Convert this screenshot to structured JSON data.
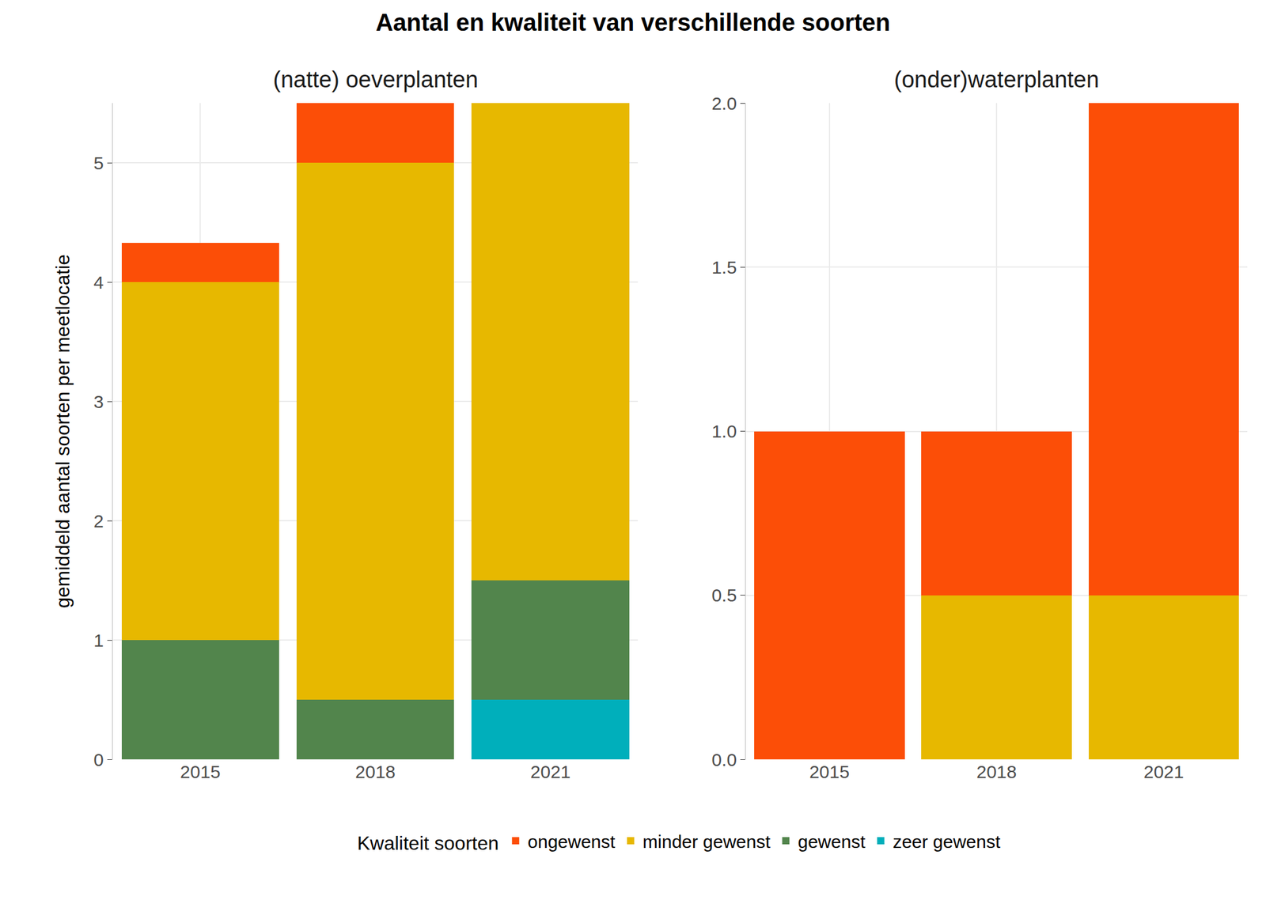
{
  "title": "Aantal en kwaliteit van verschillende soorten",
  "y_label": "gemiddeld aantal soorten per meetlocatie",
  "legend_title": "Kwaliteit soorten",
  "legend": "bottom",
  "chart_data": [
    {
      "type": "bar",
      "title": "(natte) oeverplanten",
      "stacked": true,
      "grid": true,
      "categories": [
        "2015",
        "2018",
        "2021"
      ],
      "series": [
        {
          "name": "ongewenst",
          "color": "#FC4E07",
          "values": [
            0.33,
            0.5,
            0
          ]
        },
        {
          "name": "minder gewenst",
          "color": "#E7B800",
          "values": [
            3,
            4.5,
            4
          ]
        },
        {
          "name": "gewenst",
          "color": "#52854C",
          "values": [
            1,
            0.5,
            1
          ]
        },
        {
          "name": "zeer gewenst",
          "color": "#00AFBB",
          "values": [
            0,
            0,
            0.5
          ]
        }
      ],
      "ylim": [
        0,
        5.5
      ],
      "yticks": [
        0,
        1,
        2,
        3,
        4,
        5
      ]
    },
    {
      "type": "bar",
      "title": "(onder)waterplanten",
      "stacked": true,
      "grid": true,
      "categories": [
        "2015",
        "2018",
        "2021"
      ],
      "series": [
        {
          "name": "ongewenst",
          "color": "#FC4E07",
          "values": [
            1,
            0.5,
            1.5
          ]
        },
        {
          "name": "minder gewenst",
          "color": "#E7B800",
          "values": [
            0,
            0.5,
            0.5
          ]
        },
        {
          "name": "gewenst",
          "color": "#52854C",
          "values": [
            0,
            0,
            0
          ]
        },
        {
          "name": "zeer gewenst",
          "color": "#00AFBB",
          "values": [
            0,
            0,
            0
          ]
        }
      ],
      "ylim": [
        0,
        2
      ],
      "yticks": [
        {
          "value": 0,
          "label": "0.0"
        },
        0.5,
        {
          "value": 1,
          "label": "1.0"
        },
        1.5,
        {
          "value": 2,
          "label": "2.0"
        }
      ]
    }
  ]
}
